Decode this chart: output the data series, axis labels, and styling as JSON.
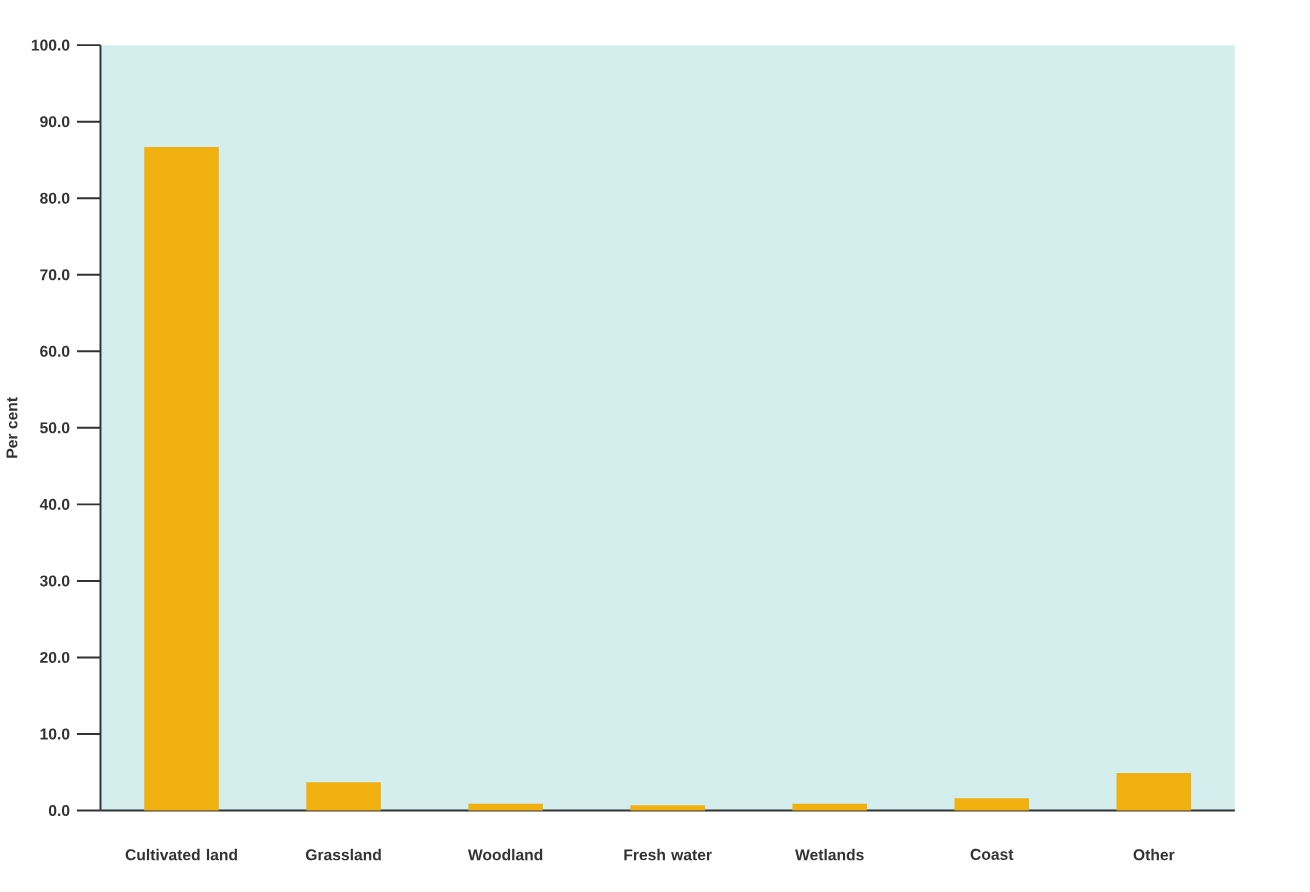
{
  "chart_data": {
    "type": "bar",
    "ylabel": "Per cent",
    "categories": [
      "Cultivated land",
      "Grassland",
      "Woodland",
      "Fresh water",
      "Wetlands",
      "Coast",
      "Other"
    ],
    "values": [
      86.7,
      3.7,
      0.9,
      0.7,
      0.9,
      1.6,
      4.9
    ],
    "color": "#efb010",
    "ylim": [
      0,
      100
    ],
    "yticks": [
      {
        "value": 0,
        "label": "0.0"
      },
      {
        "value": 10,
        "label": "10.0"
      },
      {
        "value": 20,
        "label": "20.0"
      },
      {
        "value": 30,
        "label": "30.0"
      },
      {
        "value": 40,
        "label": "40.0"
      },
      {
        "value": 50,
        "label": "50.0"
      },
      {
        "value": 60,
        "label": "60.0"
      },
      {
        "value": 70,
        "label": "70.0"
      },
      {
        "value": 80,
        "label": "80.0"
      },
      {
        "value": 90,
        "label": "90.0"
      },
      {
        "value": 100,
        "label": "100.0"
      }
    ]
  }
}
